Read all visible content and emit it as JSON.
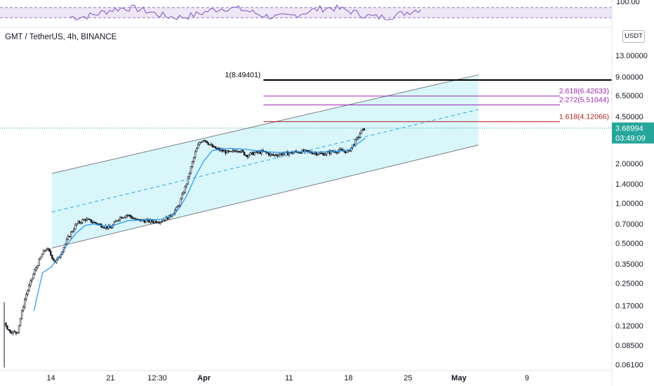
{
  "header": {
    "title": "GMT / TetherUS, 4h, BINANCE",
    "unit": "USDT"
  },
  "rsi": {
    "top_label": "100.00",
    "upper_band": 70,
    "lower_band": 30,
    "colors": {
      "line": "#7e57c2",
      "band_fill": "#ede7f6",
      "band_line": "#9575cd"
    }
  },
  "price_tag": {
    "value": "3.68994",
    "countdown": "03:49:09",
    "color": "#26a69a"
  },
  "colors": {
    "up": "#26a69a",
    "down": "#ef5350",
    "candle": "#131722",
    "ma": "#2196f3",
    "channel_fill": "#d9f6fb",
    "channel_line": "#787b86",
    "mid_line": "#29a8e0"
  },
  "chart_data": {
    "type": "line",
    "scale": "log",
    "ylim": [
      0.055,
      16
    ],
    "y_ticks": [
      "13.00000",
      "9.00000",
      "6.50000",
      "4.50000",
      "2.00000",
      "1.40000",
      "1.00000",
      "0.70000",
      "0.50000",
      "0.35000",
      "0.25000",
      "0.17000",
      "0.12000",
      "0.08500",
      "0.06100"
    ],
    "y_tick_values": [
      13,
      9,
      6.5,
      4.5,
      2,
      1.4,
      1,
      0.7,
      0.5,
      0.35,
      0.25,
      0.17,
      0.12,
      0.085,
      0.061
    ],
    "x_ticks": [
      "14",
      "21",
      "12:30",
      "Apr",
      "11",
      "18",
      "25",
      "May",
      "9"
    ],
    "x_tick_days": [
      14,
      21,
      26.5,
      32,
      42,
      49,
      56,
      62,
      70
    ],
    "x_domain_days": [
      8,
      80
    ],
    "series": [
      {
        "values_x_days": [
          8.5,
          9,
          10,
          11,
          12,
          13,
          13.5,
          14.5,
          15,
          16,
          17,
          18,
          19,
          20,
          21,
          22,
          23,
          24,
          25,
          26,
          27,
          28,
          29,
          30,
          30.5,
          31,
          31.5,
          32,
          33,
          34,
          35,
          36,
          37,
          38,
          39,
          40,
          41,
          42,
          43,
          44,
          45,
          46,
          47,
          48,
          49,
          50,
          50.5,
          51
        ],
        "values": [
          0.13,
          0.11,
          0.105,
          0.2,
          0.3,
          0.42,
          0.46,
          0.36,
          0.4,
          0.55,
          0.7,
          0.76,
          0.72,
          0.68,
          0.65,
          0.78,
          0.82,
          0.75,
          0.74,
          0.73,
          0.74,
          0.8,
          0.95,
          1.45,
          1.9,
          2.45,
          2.9,
          3.05,
          2.65,
          2.5,
          2.4,
          2.55,
          2.3,
          2.4,
          2.45,
          2.3,
          2.35,
          2.4,
          2.45,
          2.45,
          2.4,
          2.35,
          2.45,
          2.5,
          2.45,
          3.05,
          3.5,
          3.69
        ]
      }
    ],
    "moving_average": {
      "values_x_days": [
        12,
        13,
        14,
        15,
        16,
        17,
        18,
        19,
        20,
        21,
        23,
        25,
        27,
        28,
        29,
        30,
        31,
        32,
        33,
        35,
        37,
        39,
        41,
        43,
        45,
        47,
        49,
        50,
        51
      ],
      "values": [
        0.155,
        0.3,
        0.33,
        0.4,
        0.5,
        0.6,
        0.68,
        0.7,
        0.68,
        0.67,
        0.74,
        0.75,
        0.76,
        0.8,
        0.9,
        1.15,
        1.6,
        2.1,
        2.5,
        2.6,
        2.55,
        2.45,
        2.42,
        2.45,
        2.43,
        2.45,
        2.5,
        2.8,
        3.1
      ]
    },
    "channel": {
      "start_day": 14.1,
      "end_day": 64.3,
      "upper": [
        1.68,
        9.3
      ],
      "lower": [
        0.46,
        2.75
      ],
      "mid": [
        0.86,
        5.1
      ]
    },
    "fib_levels": [
      {
        "label": "1(8.49401)",
        "value": 8.49401,
        "color": "#000000",
        "label_pos": "left",
        "start_day": 39
      },
      {
        "label": "2.618(6.42633)",
        "value": 6.42633,
        "color": "#9c27b0",
        "label_pos": "right",
        "start_day": 39
      },
      {
        "label": "2.272(5.51044)",
        "value": 5.51044,
        "color": "#9c27b0",
        "label_pos": "right",
        "start_day": 39
      },
      {
        "label": "1.618(4.12066)",
        "value": 4.12066,
        "color": "#b71c1c",
        "label_pos": "right",
        "start_day": 39
      }
    ],
    "current_price": 3.68994
  }
}
